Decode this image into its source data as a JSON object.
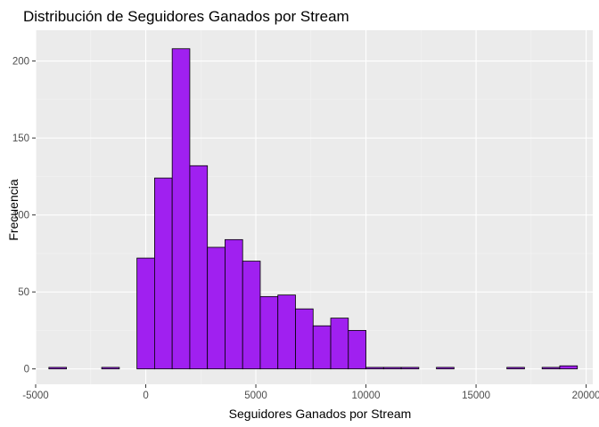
{
  "chart_data": {
    "type": "bar",
    "title": "Distribución de Seguidores Ganados por Stream",
    "xlabel": "Seguidores Ganados por Stream",
    "ylabel": "Frecuencia",
    "xlim": [
      -5000,
      20300
    ],
    "ylim": [
      -10,
      220
    ],
    "x_ticks": [
      -5000,
      0,
      5000,
      10000,
      15000,
      20000
    ],
    "x_tick_labels": [
      "-5000",
      "0",
      "5000",
      "10000",
      "15000",
      "20000"
    ],
    "y_ticks": [
      0,
      50,
      100,
      150,
      200
    ],
    "y_tick_labels": [
      "0",
      "50",
      "100",
      "150",
      "200"
    ],
    "grid": true,
    "bin_width": 800,
    "bins": [
      {
        "x0": -4400,
        "x1": -3600,
        "count": 1
      },
      {
        "x0": -3600,
        "x1": -2800,
        "count": 0
      },
      {
        "x0": -2800,
        "x1": -2000,
        "count": 0
      },
      {
        "x0": -2000,
        "x1": -1200,
        "count": 1
      },
      {
        "x0": -1200,
        "x1": -400,
        "count": 0
      },
      {
        "x0": -400,
        "x1": 400,
        "count": 72
      },
      {
        "x0": 400,
        "x1": 1200,
        "count": 124
      },
      {
        "x0": 1200,
        "x1": 2000,
        "count": 208
      },
      {
        "x0": 2000,
        "x1": 2800,
        "count": 132
      },
      {
        "x0": 2800,
        "x1": 3600,
        "count": 79
      },
      {
        "x0": 3600,
        "x1": 4400,
        "count": 84
      },
      {
        "x0": 4400,
        "x1": 5200,
        "count": 70
      },
      {
        "x0": 5200,
        "x1": 6000,
        "count": 47
      },
      {
        "x0": 6000,
        "x1": 6800,
        "count": 48
      },
      {
        "x0": 6800,
        "x1": 7600,
        "count": 39
      },
      {
        "x0": 7600,
        "x1": 8400,
        "count": 28
      },
      {
        "x0": 8400,
        "x1": 9200,
        "count": 33
      },
      {
        "x0": 9200,
        "x1": 10000,
        "count": 25
      },
      {
        "x0": 10000,
        "x1": 10800,
        "count": 1
      },
      {
        "x0": 10800,
        "x1": 11600,
        "count": 1
      },
      {
        "x0": 11600,
        "x1": 12400,
        "count": 1
      },
      {
        "x0": 12400,
        "x1": 13200,
        "count": 0
      },
      {
        "x0": 13200,
        "x1": 14000,
        "count": 1
      },
      {
        "x0": 14000,
        "x1": 14800,
        "count": 0
      },
      {
        "x0": 14800,
        "x1": 15600,
        "count": 0
      },
      {
        "x0": 15600,
        "x1": 16400,
        "count": 0
      },
      {
        "x0": 16400,
        "x1": 17200,
        "count": 1
      },
      {
        "x0": 17200,
        "x1": 18000,
        "count": 0
      },
      {
        "x0": 18000,
        "x1": 18800,
        "count": 1
      },
      {
        "x0": 18800,
        "x1": 19600,
        "count": 2
      }
    ],
    "colors": {
      "bar_fill": "#A020F0",
      "bar_stroke": "#000000",
      "panel_bg": "#EBEBEB",
      "grid_major": "#FFFFFF",
      "grid_minor": "#F4F4F4",
      "tick_text": "#4D4D4D",
      "tick_mark": "#333333"
    }
  }
}
